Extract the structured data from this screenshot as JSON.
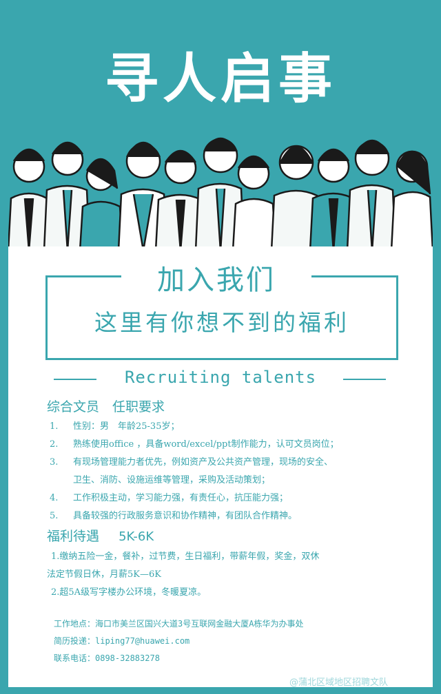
{
  "title": "寻人启事",
  "illustration": "cartoon-office-workers-group",
  "header": {
    "join": "加入我们",
    "benefit_line": "这里有你想不到的福利"
  },
  "recruiting": "Recruiting talents",
  "position": {
    "title": "综合文员　任职要求",
    "requirements": [
      {
        "num": "1.",
        "lines": [
          "性别：男　年龄25-35岁；"
        ]
      },
      {
        "num": "2.",
        "lines": [
          "熟练使用office ，具备word/excel/ppt制作能力，认可文员岗位；"
        ]
      },
      {
        "num": "3.",
        "lines": [
          "有现场管理能力者优先，例如资产及公共资产管理，现场的安全、",
          "卫生、消防、设施运维等管理，采购及活动策划；"
        ]
      },
      {
        "num": "4.",
        "lines": [
          "工作积极主动，学习能力强，有责任心，抗压能力强；"
        ]
      },
      {
        "num": "5.",
        "lines": [
          "具备较强的行政服务意识和协作精神，有团队合作精神。"
        ]
      }
    ]
  },
  "welfare": {
    "title": "福利待遇",
    "salary": "5K-6K",
    "items": [
      "1.缴纳五险一金，餐补，过节费，生日福利，带薪年假，奖金，双休",
      "法定节假日休，月薪5K—6K",
      "2.超5A级写字楼办公环境，冬暖夏凉。"
    ]
  },
  "contact": {
    "address": "工作地点：海口市美兰区国兴大道3号互联网金融大厦A栋华为办事处",
    "email": "简历投递：liping77@huawei.com",
    "phone": "联系电话：0898-32883278"
  },
  "watermark": "@蒲北区域地区招聘文队",
  "colors": {
    "accent": "#3aa6ae",
    "background": "#3aa6ae",
    "card": "#ffffff"
  }
}
